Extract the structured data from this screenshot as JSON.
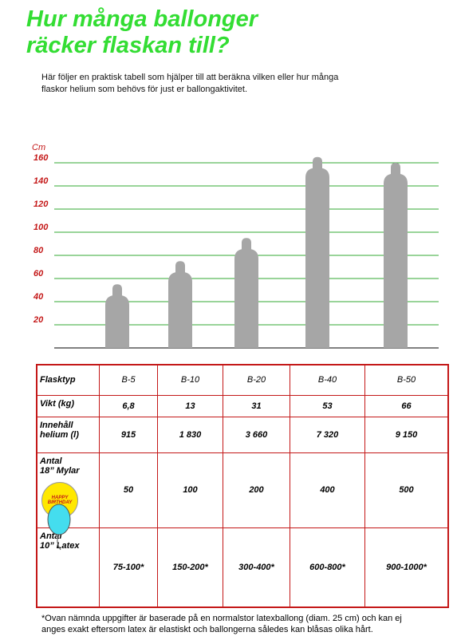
{
  "header": {
    "title": [
      "Hur många ballonger",
      "räcker flaskan till?"
    ],
    "intro": [
      "Här följer en praktisk tabell som hjälper till att beräkna vilken eller hur många",
      "flaskor helium som behövs för just er ballongaktivitet."
    ]
  },
  "chart_data": {
    "type": "bottle",
    "y_label": "Cm",
    "categories": [
      "B-5",
      "B-10",
      "B-20",
      "B-40",
      "B-50"
    ],
    "values": [
      55,
      75,
      95,
      165,
      160
    ],
    "color": "#a6a6a6",
    "ylim": [
      0,
      160
    ],
    "yticks": [
      20,
      40,
      60,
      80,
      100,
      120,
      140,
      160
    ],
    "grid": true,
    "grid_color": "#33aa33"
  },
  "table": {
    "header_label": "Flasktyp",
    "rows": [
      {
        "label": [
          "Vikt (kg)"
        ],
        "cells": [
          "6,8",
          "13",
          "31",
          "53",
          "66"
        ]
      },
      {
        "label": [
          "Innehåll",
          "helium (l)"
        ],
        "cells": [
          "915",
          "1 830",
          "3 660",
          "7 320",
          "9 150"
        ]
      },
      {
        "label": [
          "Antal",
          "18” Mylar"
        ],
        "badge": [
          "HAPPY",
          "BIRTHDAY"
        ],
        "cells": [
          "50",
          "100",
          "200",
          "400",
          "500"
        ]
      },
      {
        "label": [
          "Antal",
          "10” Latex"
        ],
        "cells": [
          "75-100*",
          "150-200*",
          "300-400*",
          "600-800*",
          "900-1000*"
        ]
      }
    ]
  },
  "footnote": [
    "*Ovan nämnda uppgifter är baserade på en normalstor latexballong (diam. 25 cm) och kan ej",
    "anges exakt eftersom latex är elastiskt och ballongerna således kan blåsas olika hårt."
  ]
}
